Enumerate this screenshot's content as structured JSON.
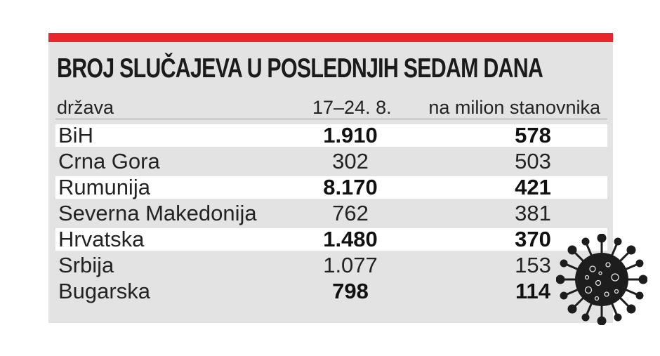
{
  "title": "BROJ SLUČAJEVA U POSLEDNJIH SEDAM DANA",
  "header": {
    "country": "država",
    "period": "17–24. 8.",
    "per_million": "na milion stanovnika"
  },
  "rows": [
    {
      "country": "BiH",
      "cases": "1.910",
      "per_million": "578",
      "bold": true
    },
    {
      "country": "Crna Gora",
      "cases": "302",
      "per_million": "503",
      "bold": false
    },
    {
      "country": "Rumunija",
      "cases": "8.170",
      "per_million": "421",
      "bold": true
    },
    {
      "country": "Severna Makedonija",
      "cases": "762",
      "per_million": "381",
      "bold": false
    },
    {
      "country": "Hrvatska",
      "cases": "1.480",
      "per_million": "370",
      "bold": true
    },
    {
      "country": "Srbija",
      "cases": "1.077",
      "per_million": "153",
      "bold": false
    },
    {
      "country": "Bugarska",
      "cases": "798",
      "per_million": "114",
      "bold": true
    }
  ],
  "colors": {
    "accent": "#e8262b",
    "panel": "#e3e3e3",
    "shaded_row": "#ffffff",
    "text": "#232323"
  },
  "icons": {
    "virus": "coronavirus-icon"
  }
}
